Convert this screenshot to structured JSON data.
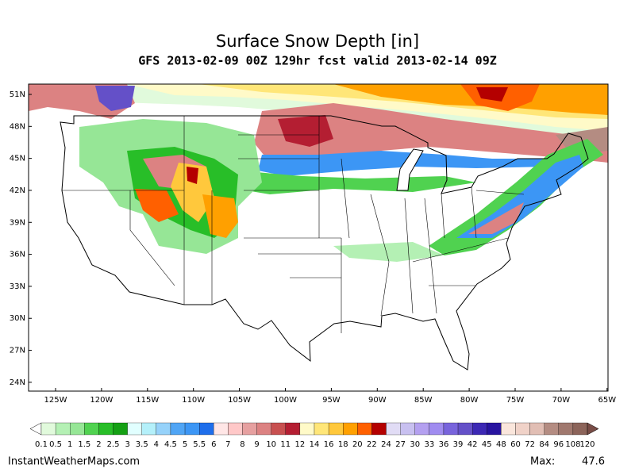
{
  "header": {
    "title": "Surface Snow Depth [in]",
    "subtitle": "GFS 2013-02-09 00Z 129hr fcst valid 2013-02-14 09Z"
  },
  "map": {
    "lat_ticks": [
      {
        "value": 51,
        "label": "51N"
      },
      {
        "value": 48,
        "label": "48N"
      },
      {
        "value": 45,
        "label": "45N"
      },
      {
        "value": 42,
        "label": "42N"
      },
      {
        "value": 39,
        "label": "39N"
      },
      {
        "value": 36,
        "label": "36N"
      },
      {
        "value": 33,
        "label": "33N"
      },
      {
        "value": 30,
        "label": "30N"
      },
      {
        "value": 27,
        "label": "27N"
      },
      {
        "value": 24,
        "label": "24N"
      }
    ],
    "lon_ticks": [
      {
        "value": -125,
        "label": "125W"
      },
      {
        "value": -120,
        "label": "120W"
      },
      {
        "value": -115,
        "label": "115W"
      },
      {
        "value": -110,
        "label": "110W"
      },
      {
        "value": -105,
        "label": "105W"
      },
      {
        "value": -100,
        "label": "100W"
      },
      {
        "value": -95,
        "label": "95W"
      },
      {
        "value": -90,
        "label": "90W"
      },
      {
        "value": -85,
        "label": "85W"
      },
      {
        "value": -80,
        "label": "80W"
      },
      {
        "value": -75,
        "label": "75W"
      },
      {
        "value": -70,
        "label": "70W"
      },
      {
        "value": -65,
        "label": "65W"
      }
    ]
  },
  "colorbar": {
    "ticks": [
      0.1,
      0.5,
      1,
      1.5,
      2,
      2.5,
      3,
      3.5,
      4,
      4.5,
      5,
      5.5,
      6,
      7,
      8,
      9,
      10,
      11,
      12,
      14,
      16,
      18,
      20,
      22,
      24,
      27,
      30,
      33,
      36,
      39,
      42,
      45,
      48,
      60,
      72,
      84,
      96,
      108,
      120
    ],
    "colors": [
      "#e1fadc",
      "#b4f0b4",
      "#96e696",
      "#50d250",
      "#28be28",
      "#14a014",
      "#e1ffff",
      "#b4f0fa",
      "#96d2fa",
      "#50a5f5",
      "#3c96f5",
      "#1e6eeb",
      "#ffe6e6",
      "#ffc8c8",
      "#e6a0a0",
      "#dc8282",
      "#c85050",
      "#b41e32",
      "#fffac8",
      "#ffe678",
      "#ffc83c",
      "#ffa000",
      "#ff6000",
      "#b40000",
      "#e1dcf5",
      "#c8c0f0",
      "#b4a0f0",
      "#a08cf0",
      "#7864dc",
      "#6450c8",
      "#3c28b4",
      "#2814a0",
      "#fae6dc",
      "#f0d2c8",
      "#e1beb4",
      "#b48c82",
      "#a0786e",
      "#8c645a"
    ],
    "under_color": "#ffffff",
    "over_color": "#784c46"
  },
  "footer": {
    "site": "InstantWeatherMaps.com",
    "max_label": "Max:",
    "max_value": 47.6
  }
}
